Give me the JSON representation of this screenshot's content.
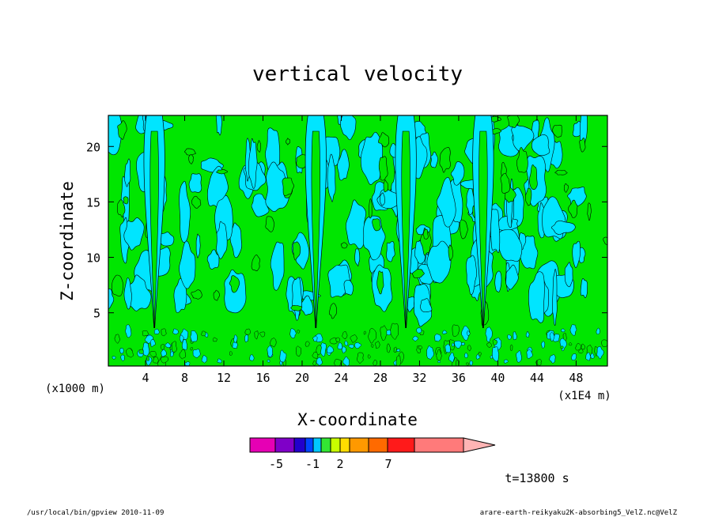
{
  "chart_data": {
    "type": "heatmap",
    "title": "vertical velocity",
    "xlabel": "X-coordinate",
    "ylabel": "Z-coordinate",
    "x_unit": "(x1E4 m)",
    "y_unit": "(x1000 m)",
    "xlim": [
      0.2,
      51.2
    ],
    "ylim": [
      0.2,
      22.8
    ],
    "x_ticks": [
      4,
      8,
      12,
      16,
      20,
      24,
      28,
      32,
      36,
      40,
      44,
      48
    ],
    "x_tick_labels": [
      "4",
      "8",
      "12",
      "16",
      "20",
      "24",
      "28",
      "32",
      "36",
      "40",
      "44",
      "48"
    ],
    "y_ticks": [
      5,
      10,
      15,
      20
    ],
    "y_tick_labels": [
      "5",
      "10",
      "15",
      "20"
    ],
    "time_label": "t=13800 s",
    "plume_x": [
      4.9,
      21.4,
      30.6,
      38.5
    ],
    "colorbar": {
      "labeled_levels": [
        -5,
        -1,
        2,
        7
      ],
      "labels": [
        "-5",
        "-1",
        "2",
        "7"
      ],
      "segments": [
        {
          "color": "#e600b4"
        },
        {
          "color": "#7f00c8"
        },
        {
          "color": "#2200cc"
        },
        {
          "color": "#0044ff"
        },
        {
          "color": "#00c8ff"
        },
        {
          "color": "#33e633"
        },
        {
          "color": "#c8ff00"
        },
        {
          "color": "#ffdd00"
        },
        {
          "color": "#ff9900"
        },
        {
          "color": "#ff6a00"
        },
        {
          "color": "#ff1a1a"
        },
        {
          "color": "#ff7a7a"
        }
      ],
      "extend_color": "#ffb4b4"
    },
    "colors": {
      "negative": "#00e5ff",
      "positive": "#00e600",
      "contour": "#000000"
    }
  },
  "footer": {
    "left": "/usr/local/bin/gpview  2010-11-09",
    "right": "arare-earth-reikyaku2K-absorbing5_VelZ.nc@VelZ"
  }
}
